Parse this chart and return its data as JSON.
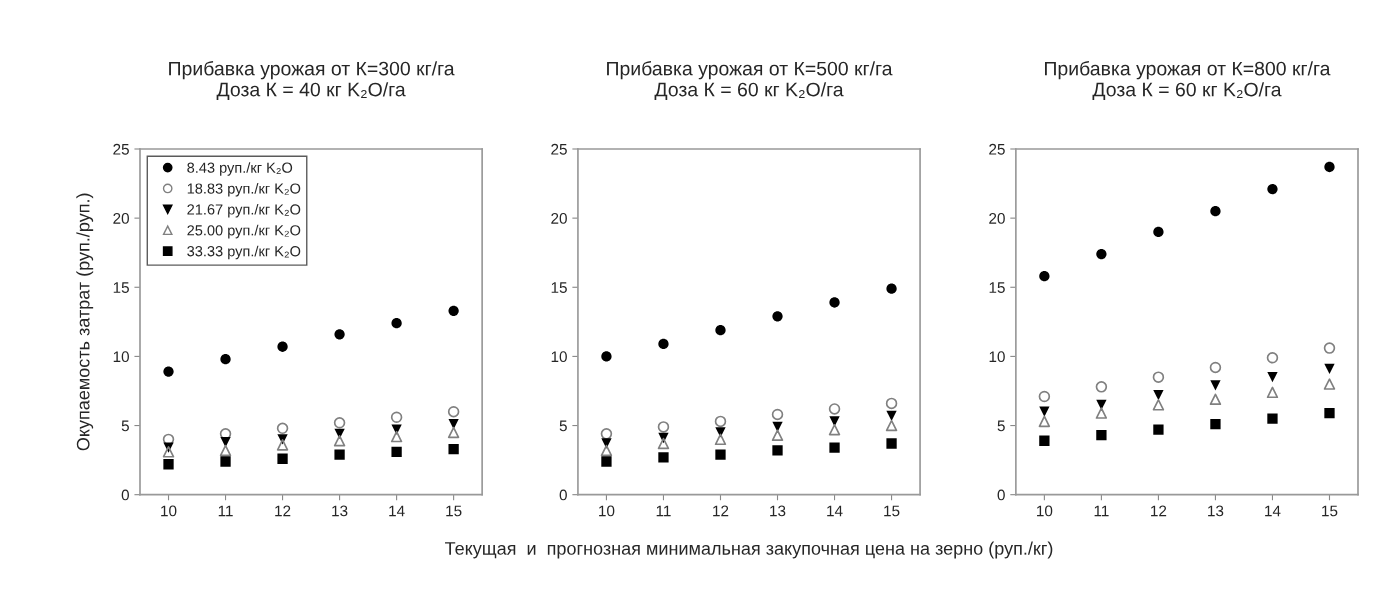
{
  "chart_data": [
    {
      "type": "scatter",
      "title": "Прибавка урожая от К=300 кг/га\nДоза К = 40 кг K₂O/га",
      "ylabel": "Окупаемость затрат (руп./руп.)",
      "x": [
        10,
        11,
        12,
        13,
        14,
        15
      ],
      "xlim": [
        9.5,
        15.5
      ],
      "xticks": [
        10,
        11,
        12,
        13,
        14,
        15
      ],
      "ylim": [
        0,
        25
      ],
      "yticks": [
        0,
        5,
        10,
        15,
        20,
        25
      ],
      "grid": false,
      "legend": "top left",
      "series": [
        {
          "name": "8.43 руп./кг K₂O",
          "color": "#000000",
          "marker": "circle",
          "values": [
            8.9,
            9.8,
            10.7,
            11.6,
            12.4,
            13.3
          ]
        },
        {
          "name": "18.83 руп./кг K₂O",
          "color": "#808080",
          "marker": "circle-open",
          "values": [
            4.0,
            4.4,
            4.8,
            5.2,
            5.6,
            6.0
          ]
        },
        {
          "name": "21.67 руп./кг K₂O",
          "color": "#000000",
          "marker": "triangle-down",
          "values": [
            3.4,
            3.8,
            4.0,
            4.4,
            4.7,
            5.1
          ]
        },
        {
          "name": "25.00 руп./кг K₂O",
          "color": "#808080",
          "marker": "triangle-open",
          "values": [
            3.1,
            3.2,
            3.6,
            3.9,
            4.2,
            4.5
          ]
        },
        {
          "name": "33.33 руп./кг K₂O",
          "color": "#000000",
          "marker": "square",
          "values": [
            2.2,
            2.4,
            2.6,
            2.9,
            3.1,
            3.3
          ]
        }
      ]
    },
    {
      "type": "scatter",
      "title": "Прибавка урожая от К=500 кг/га\nДоза К = 60 кг K₂O/га",
      "xlabel": "Текущая  и  прогнозная минимальная закупочная цена на зерно (руп./кг)",
      "x": [
        10,
        11,
        12,
        13,
        14,
        15
      ],
      "xlim": [
        9.5,
        15.5
      ],
      "xticks": [
        10,
        11,
        12,
        13,
        14,
        15
      ],
      "ylim": [
        0,
        25
      ],
      "yticks": [
        0,
        5,
        10,
        15,
        20,
        25
      ],
      "grid": false,
      "series": [
        {
          "color": "#000000",
          "marker": "circle",
          "values": [
            10.0,
            10.9,
            11.9,
            12.9,
            13.9,
            14.9
          ]
        },
        {
          "color": "#808080",
          "marker": "circle-open",
          "values": [
            4.4,
            4.9,
            5.3,
            5.8,
            6.2,
            6.6
          ]
        },
        {
          "color": "#000000",
          "marker": "triangle-down",
          "values": [
            3.7,
            4.1,
            4.5,
            4.9,
            5.3,
            5.7
          ]
        },
        {
          "color": "#808080",
          "marker": "triangle-open",
          "values": [
            3.2,
            3.7,
            4.0,
            4.3,
            4.7,
            5.0
          ]
        },
        {
          "color": "#000000",
          "marker": "square",
          "values": [
            2.4,
            2.7,
            2.9,
            3.2,
            3.4,
            3.7
          ]
        }
      ]
    },
    {
      "type": "scatter",
      "title": "Прибавка урожая от К=800 кг/га\nДоза К = 60 кг K₂O/га",
      "x": [
        10,
        11,
        12,
        13,
        14,
        15
      ],
      "xlim": [
        9.5,
        15.5
      ],
      "xticks": [
        10,
        11,
        12,
        13,
        14,
        15
      ],
      "ylim": [
        0,
        25
      ],
      "yticks": [
        0,
        5,
        10,
        15,
        20,
        25
      ],
      "grid": false,
      "series": [
        {
          "color": "#000000",
          "marker": "circle",
          "values": [
            15.8,
            17.4,
            19.0,
            20.5,
            22.1,
            23.7
          ]
        },
        {
          "color": "#808080",
          "marker": "circle-open",
          "values": [
            7.1,
            7.8,
            8.5,
            9.2,
            9.9,
            10.6
          ]
        },
        {
          "color": "#000000",
          "marker": "triangle-down",
          "values": [
            6.0,
            6.5,
            7.2,
            7.9,
            8.5,
            9.1
          ]
        },
        {
          "color": "#808080",
          "marker": "triangle-open",
          "values": [
            5.3,
            5.9,
            6.5,
            6.9,
            7.4,
            8.0
          ]
        },
        {
          "color": "#000000",
          "marker": "square",
          "values": [
            3.9,
            4.3,
            4.7,
            5.1,
            5.5,
            5.9
          ]
        }
      ]
    }
  ]
}
